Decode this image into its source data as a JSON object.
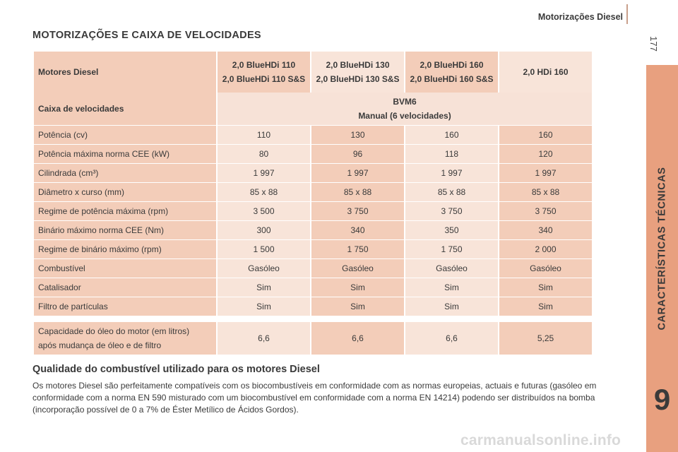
{
  "header": {
    "title": "Motorizações Diesel",
    "page_number": "177"
  },
  "side_tab": {
    "title": "CARACTERÍSTICAS TÉCNICAS",
    "chapter": "9"
  },
  "section_title": "MOTORIZAÇÕES E CAIXA DE VELOCIDADES",
  "table": {
    "head": {
      "label": "Motores Diesel",
      "columns": [
        {
          "line1": "2,0 BlueHDi 110",
          "line2": "2,0 BlueHDi 110 S&S"
        },
        {
          "line1": "2,0 BlueHDi 130",
          "line2": "2,0 BlueHDi 130 S&S"
        },
        {
          "line1": "2,0 BlueHDi 160",
          "line2": "2,0 BlueHDi 160 S&S"
        },
        {
          "line1": "2,0 HDi 160",
          "line2": ""
        }
      ]
    },
    "gearbox": {
      "label": "Caixa de velocidades",
      "line1": "BVM6",
      "line2": "Manual (6 velocidades)"
    },
    "rows": [
      {
        "label": "Potência (cv)",
        "values": [
          "110",
          "130",
          "160",
          "160"
        ]
      },
      {
        "label": "Potência máxima norma CEE (kW)",
        "values": [
          "80",
          "96",
          "118",
          "120"
        ]
      },
      {
        "label": "Cilindrada (cm³)",
        "values": [
          "1 997",
          "1 997",
          "1 997",
          "1 997"
        ]
      },
      {
        "label": "Diâmetro x curso (mm)",
        "values": [
          "85 x 88",
          "85 x 88",
          "85 x 88",
          "85 x 88"
        ]
      },
      {
        "label": "Regime de potência máxima (rpm)",
        "values": [
          "3 500",
          "3 750",
          "3 750",
          "3 750"
        ]
      },
      {
        "label": "Binário máximo norma CEE (Nm)",
        "values": [
          "300",
          "340",
          "350",
          "340"
        ]
      },
      {
        "label": "Regime de binário máximo (rpm)",
        "values": [
          "1 500",
          "1 750",
          "1 750",
          "2 000"
        ]
      },
      {
        "label": "Combustível",
        "values": [
          "Gasóleo",
          "Gasóleo",
          "Gasóleo",
          "Gasóleo"
        ]
      },
      {
        "label": "Catalisador",
        "values": [
          "Sim",
          "Sim",
          "Sim",
          "Sim"
        ]
      },
      {
        "label": "Filtro de partículas",
        "values": [
          "Sim",
          "Sim",
          "Sim",
          "Sim"
        ]
      }
    ],
    "oil": {
      "label_line1": "Capacidade do óleo do motor (em litros)",
      "label_line2": "após mudança de óleo e de filtro",
      "values": [
        "6,6",
        "6,6",
        "6,6",
        "5,25"
      ]
    }
  },
  "fuel_section": {
    "title": "Qualidade do combustível utilizado para os motores Diesel",
    "text": "Os motores Diesel são perfeitamente compatíveis com os biocombustíveis em conformidade com as normas europeias, actuais e futuras (gasóleo em conformidade com a norma EN 590 misturado com um biocombustível em conformidade com a norma EN 14214) podendo ser distribuídos na bomba (incorporação possível de 0 a 7% de Éster Metílico de Ácidos Gordos)."
  },
  "watermark": "carmanualsonline.info",
  "colors": {
    "side_tab": "#e8a07f",
    "cell_dark": "#f3cdb9",
    "cell_light": "#f8e4d9"
  }
}
